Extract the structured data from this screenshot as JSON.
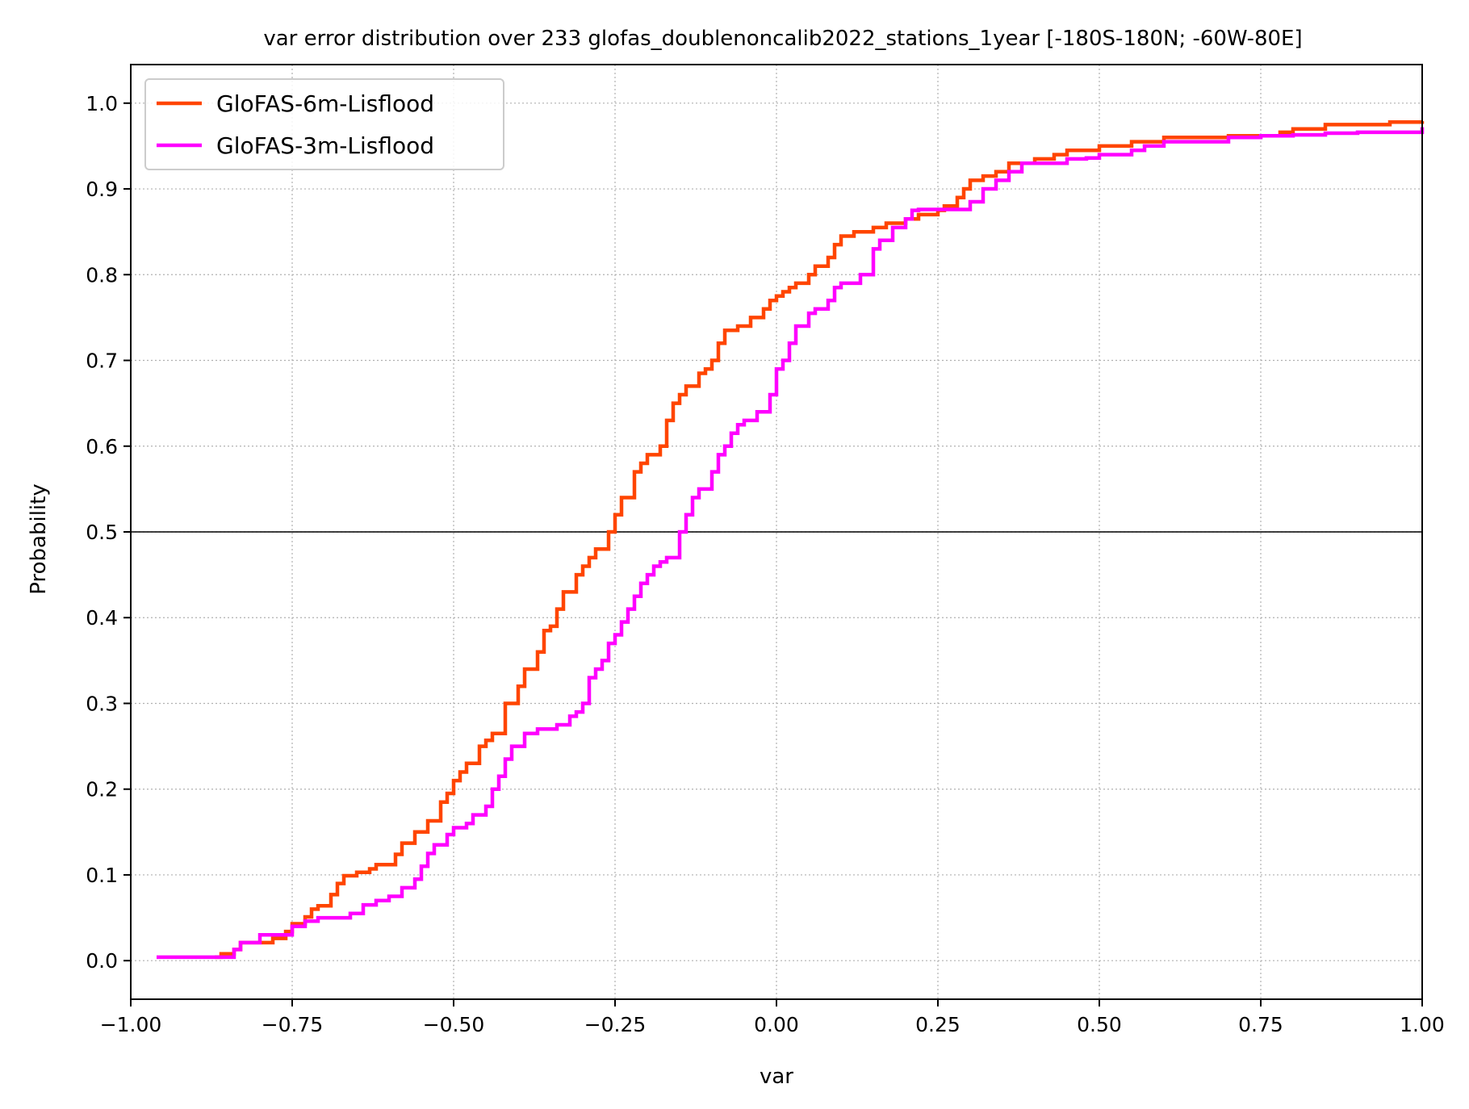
{
  "chart_data": {
    "type": "line",
    "title": "var error distribution over 233 glofas_doublenoncalib2022_stations_1year [-180S-180N; -60W-80E]",
    "xlabel": "var",
    "ylabel": "Probability",
    "xlim": [
      -1.0,
      1.0
    ],
    "ylim": [
      -0.045,
      1.045
    ],
    "xticks": [
      -1.0,
      -0.75,
      -0.5,
      -0.25,
      0.0,
      0.25,
      0.5,
      0.75,
      1.0
    ],
    "xtick_labels": [
      "−1.00",
      "−0.75",
      "−0.50",
      "−0.25",
      "0.00",
      "0.25",
      "0.50",
      "0.75",
      "1.00"
    ],
    "yticks": [
      0.0,
      0.1,
      0.2,
      0.3,
      0.4,
      0.5,
      0.6,
      0.7,
      0.8,
      0.9,
      1.0
    ],
    "ytick_labels": [
      "0.0",
      "0.1",
      "0.2",
      "0.3",
      "0.4",
      "0.5",
      "0.6",
      "0.7",
      "0.8",
      "0.9",
      "1.0"
    ],
    "grid": true,
    "reference_line": 0.5,
    "legend_position": "upper-left",
    "series": [
      {
        "name": "GloFAS-6m-Lisflood",
        "color": "#ff4500",
        "x": [
          -0.87,
          -0.86,
          -0.84,
          -0.83,
          -0.78,
          -0.76,
          -0.75,
          -0.73,
          -0.72,
          -0.71,
          -0.69,
          -0.68,
          -0.67,
          -0.65,
          -0.63,
          -0.62,
          -0.59,
          -0.58,
          -0.56,
          -0.54,
          -0.52,
          -0.51,
          -0.5,
          -0.49,
          -0.48,
          -0.46,
          -0.45,
          -0.44,
          -0.42,
          -0.4,
          -0.39,
          -0.37,
          -0.36,
          -0.35,
          -0.34,
          -0.33,
          -0.31,
          -0.3,
          -0.29,
          -0.28,
          -0.26,
          -0.25,
          -0.24,
          -0.22,
          -0.21,
          -0.2,
          -0.18,
          -0.17,
          -0.16,
          -0.15,
          -0.14,
          -0.12,
          -0.11,
          -0.1,
          -0.09,
          -0.08,
          -0.06,
          -0.04,
          -0.02,
          -0.01,
          0.0,
          0.01,
          0.02,
          0.03,
          0.05,
          0.06,
          0.08,
          0.09,
          0.1,
          0.12,
          0.15,
          0.17,
          0.2,
          0.22,
          0.25,
          0.26,
          0.28,
          0.29,
          0.3,
          0.32,
          0.34,
          0.36,
          0.4,
          0.43,
          0.45,
          0.5,
          0.55,
          0.6,
          0.7,
          0.78,
          0.8,
          0.85,
          0.95,
          1.0
        ],
        "y": [
          0.004,
          0.008,
          0.013,
          0.021,
          0.026,
          0.034,
          0.043,
          0.051,
          0.06,
          0.064,
          0.077,
          0.09,
          0.099,
          0.103,
          0.107,
          0.112,
          0.124,
          0.137,
          0.15,
          0.163,
          0.185,
          0.195,
          0.21,
          0.22,
          0.23,
          0.25,
          0.257,
          0.265,
          0.3,
          0.32,
          0.34,
          0.36,
          0.385,
          0.39,
          0.41,
          0.43,
          0.45,
          0.46,
          0.47,
          0.48,
          0.5,
          0.52,
          0.54,
          0.57,
          0.58,
          0.59,
          0.6,
          0.63,
          0.65,
          0.66,
          0.67,
          0.685,
          0.69,
          0.7,
          0.72,
          0.735,
          0.74,
          0.75,
          0.76,
          0.77,
          0.775,
          0.78,
          0.785,
          0.79,
          0.8,
          0.81,
          0.82,
          0.835,
          0.845,
          0.85,
          0.855,
          0.86,
          0.865,
          0.87,
          0.875,
          0.88,
          0.89,
          0.9,
          0.91,
          0.915,
          0.92,
          0.93,
          0.935,
          0.94,
          0.945,
          0.95,
          0.955,
          0.96,
          0.962,
          0.966,
          0.97,
          0.975,
          0.978,
          0.979
        ]
      },
      {
        "name": "GloFAS-3m-Lisflood",
        "color": "#ff00ff",
        "x": [
          -0.96,
          -0.85,
          -0.84,
          -0.83,
          -0.8,
          -0.75,
          -0.73,
          -0.71,
          -0.66,
          -0.64,
          -0.62,
          -0.6,
          -0.58,
          -0.56,
          -0.55,
          -0.54,
          -0.53,
          -0.51,
          -0.5,
          -0.48,
          -0.47,
          -0.45,
          -0.44,
          -0.43,
          -0.42,
          -0.41,
          -0.39,
          -0.37,
          -0.34,
          -0.32,
          -0.31,
          -0.3,
          -0.29,
          -0.28,
          -0.27,
          -0.26,
          -0.25,
          -0.24,
          -0.23,
          -0.22,
          -0.21,
          -0.2,
          -0.19,
          -0.18,
          -0.17,
          -0.15,
          -0.14,
          -0.13,
          -0.12,
          -0.1,
          -0.09,
          -0.08,
          -0.07,
          -0.06,
          -0.05,
          -0.03,
          -0.01,
          0.0,
          0.01,
          0.02,
          0.03,
          0.05,
          0.06,
          0.08,
          0.09,
          0.1,
          0.13,
          0.15,
          0.16,
          0.18,
          0.2,
          0.21,
          0.22,
          0.25,
          0.29,
          0.3,
          0.32,
          0.34,
          0.36,
          0.38,
          0.4,
          0.45,
          0.48,
          0.5,
          0.55,
          0.57,
          0.6,
          0.65,
          0.7,
          0.75,
          0.8,
          0.85,
          0.9,
          0.99,
          1.0
        ],
        "y": [
          0.004,
          0.004,
          0.013,
          0.021,
          0.03,
          0.04,
          0.046,
          0.05,
          0.055,
          0.065,
          0.07,
          0.075,
          0.085,
          0.095,
          0.11,
          0.125,
          0.135,
          0.147,
          0.155,
          0.16,
          0.17,
          0.18,
          0.2,
          0.215,
          0.235,
          0.25,
          0.265,
          0.27,
          0.275,
          0.285,
          0.29,
          0.3,
          0.33,
          0.34,
          0.35,
          0.37,
          0.38,
          0.395,
          0.41,
          0.425,
          0.44,
          0.45,
          0.46,
          0.465,
          0.47,
          0.5,
          0.52,
          0.54,
          0.55,
          0.57,
          0.59,
          0.6,
          0.615,
          0.625,
          0.63,
          0.64,
          0.66,
          0.69,
          0.7,
          0.72,
          0.74,
          0.755,
          0.76,
          0.77,
          0.785,
          0.79,
          0.8,
          0.83,
          0.84,
          0.855,
          0.865,
          0.875,
          0.876,
          0.876,
          0.876,
          0.885,
          0.9,
          0.91,
          0.92,
          0.93,
          0.93,
          0.935,
          0.936,
          0.94,
          0.945,
          0.95,
          0.955,
          0.955,
          0.96,
          0.962,
          0.963,
          0.965,
          0.966,
          0.966,
          0.972
        ]
      }
    ]
  }
}
